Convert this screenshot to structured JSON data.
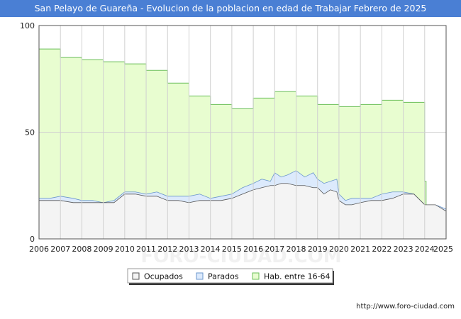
{
  "title": "San Pelayo de Guareña - Evolucion de la poblacion en edad de Trabajar Febrero de 2025",
  "footer": "http://www.foro-ciudad.com",
  "watermark": "FORO-CIUDAD.COM",
  "colors": {
    "title_bar": "#4a7fd4",
    "hab_fill": "#e8fdd0",
    "hab_line": "#6bbf5a",
    "parados_fill": "#dceafc",
    "parados_line": "#6a96cc",
    "ocupados_fill": "#f4f4f4",
    "ocupados_line": "#555555",
    "grid": "#d0d0d0"
  },
  "chart_data": {
    "type": "area",
    "title": "San Pelayo de Guareña - Evolucion de la poblacion en edad de Trabajar Febrero de 2025",
    "xlabel": "",
    "ylabel": "",
    "x_tick_labels": [
      "2006",
      "2007",
      "2008",
      "2009",
      "2010",
      "2011",
      "2012",
      "2013",
      "2014",
      "2015",
      "2016",
      "2017",
      "2018",
      "2019",
      "2020",
      "2021",
      "2022",
      "2023",
      "2024",
      "2025"
    ],
    "y_ticks": [
      0,
      50,
      100
    ],
    "ylim": [
      0,
      100
    ],
    "xlim": [
      2006,
      2025
    ],
    "grid": true,
    "legend_position": "bottom-center",
    "legend": [
      "Ocupados",
      "Parados",
      "Hab. entre 16-64"
    ],
    "series": [
      {
        "name": "Hab. entre 16-64",
        "style": "step",
        "x": [
          2006,
          2007,
          2008,
          2009,
          2010,
          2011,
          2012,
          2013,
          2014,
          2015,
          2016,
          2017,
          2018,
          2019,
          2020,
          2021,
          2022,
          2023,
          2024
        ],
        "values": [
          89,
          85,
          84,
          83,
          82,
          79,
          73,
          67,
          63,
          61,
          66,
          69,
          67,
          63,
          62,
          63,
          65,
          64,
          27
        ]
      },
      {
        "name": "Parados",
        "x": [
          2006,
          2006.5,
          2007,
          2007.6,
          2008,
          2008.5,
          2009,
          2009.5,
          2010,
          2010.5,
          2011,
          2011.5,
          2012,
          2012.5,
          2013,
          2013.5,
          2014,
          2014.5,
          2015,
          2015.5,
          2016,
          2016.4,
          2016.8,
          2017,
          2017.3,
          2017.6,
          2018,
          2018.4,
          2018.8,
          2019,
          2019.3,
          2019.6,
          2019.9,
          2020,
          2020.3,
          2020.6,
          2021,
          2021.5,
          2022,
          2022.5,
          2023,
          2023.5,
          2024,
          2024.5,
          2025
        ],
        "values": [
          19,
          19,
          20,
          19,
          18,
          18,
          17,
          18,
          22,
          22,
          21,
          22,
          20,
          20,
          20,
          21,
          19,
          20,
          21,
          24,
          26,
          28,
          27,
          31,
          29,
          30,
          32,
          29,
          31,
          28,
          26,
          27,
          28,
          21,
          18,
          19,
          19,
          19,
          21,
          22,
          22,
          21,
          16,
          16,
          14
        ]
      },
      {
        "name": "Ocupados",
        "x": [
          2006,
          2006.5,
          2007,
          2007.6,
          2008,
          2008.5,
          2009,
          2009.5,
          2010,
          2010.5,
          2011,
          2011.5,
          2012,
          2012.5,
          2013,
          2013.5,
          2014,
          2014.5,
          2015,
          2015.5,
          2016,
          2016.4,
          2016.8,
          2017,
          2017.3,
          2017.6,
          2018,
          2018.4,
          2018.8,
          2019,
          2019.3,
          2019.6,
          2019.9,
          2020,
          2020.3,
          2020.6,
          2021,
          2021.5,
          2022,
          2022.5,
          2023,
          2023.5,
          2024,
          2024.5,
          2025
        ],
        "values": [
          18,
          18,
          18,
          17,
          17,
          17,
          17,
          17,
          21,
          21,
          20,
          20,
          18,
          18,
          17,
          18,
          18,
          18,
          19,
          21,
          23,
          24,
          25,
          25,
          26,
          26,
          25,
          25,
          24,
          24,
          21,
          23,
          22,
          18,
          16,
          16,
          17,
          18,
          18,
          19,
          21,
          21,
          16,
          16,
          13
        ]
      }
    ]
  }
}
